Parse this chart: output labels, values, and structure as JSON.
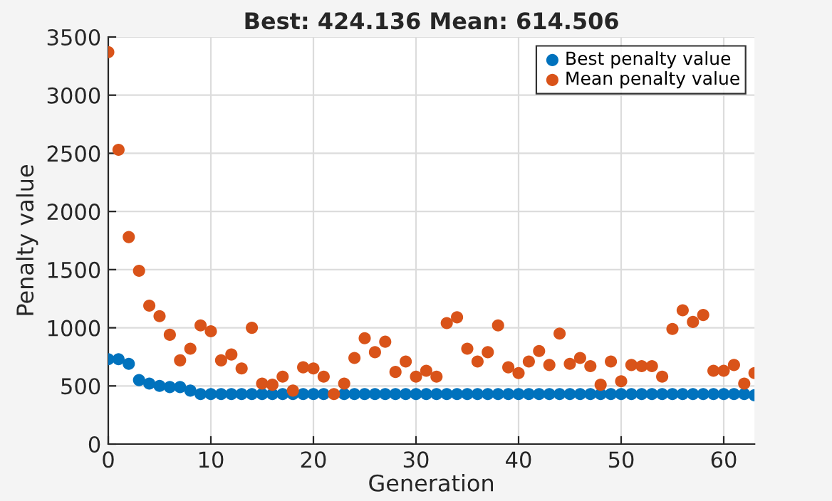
{
  "chart_data": {
    "type": "scatter",
    "title": "Best: 424.136 Mean: 614.506",
    "xlabel": "Generation",
    "ylabel": "Penalty value",
    "x": [
      0,
      1,
      2,
      3,
      4,
      5,
      6,
      7,
      8,
      9,
      10,
      11,
      12,
      13,
      14,
      15,
      16,
      17,
      18,
      19,
      20,
      21,
      22,
      23,
      24,
      25,
      26,
      27,
      28,
      29,
      30,
      31,
      32,
      33,
      34,
      35,
      36,
      37,
      38,
      39,
      40,
      41,
      42,
      43,
      44,
      45,
      46,
      47,
      48,
      49,
      50,
      51,
      52,
      53,
      54,
      55,
      56,
      57,
      58,
      59,
      60,
      61,
      62,
      63
    ],
    "series": [
      {
        "name": "Best penalty value",
        "color": "#0072bd",
        "values": [
          730,
          730,
          690,
          550,
          520,
          500,
          490,
          490,
          460,
          430,
          430,
          430,
          430,
          430,
          430,
          430,
          430,
          430,
          430,
          430,
          430,
          430,
          null,
          430,
          430,
          430,
          430,
          430,
          430,
          430,
          430,
          430,
          430,
          430,
          430,
          430,
          430,
          430,
          430,
          430,
          430,
          430,
          430,
          430,
          430,
          430,
          430,
          430,
          430,
          430,
          430,
          430,
          430,
          430,
          430,
          430,
          430,
          430,
          430,
          430,
          430,
          430,
          430,
          420
        ]
      },
      {
        "name": "Mean penalty value",
        "color": "#d95319",
        "values": [
          3370,
          2530,
          1780,
          1490,
          1190,
          1100,
          940,
          720,
          820,
          1020,
          970,
          720,
          770,
          650,
          1000,
          520,
          510,
          580,
          460,
          660,
          650,
          580,
          430,
          520,
          740,
          910,
          790,
          880,
          620,
          710,
          580,
          630,
          580,
          1040,
          1090,
          820,
          710,
          790,
          1020,
          660,
          610,
          710,
          800,
          680,
          950,
          690,
          740,
          670,
          510,
          710,
          540,
          680,
          670,
          670,
          580,
          990,
          1150,
          1050,
          1110,
          630,
          630,
          680,
          520,
          610
        ]
      }
    ],
    "xlim": [
      0,
      63
    ],
    "xticks": [
      0,
      10,
      20,
      30,
      40,
      50,
      60
    ],
    "ylim": [
      0,
      3500
    ],
    "yticks": [
      0,
      500,
      1000,
      1500,
      2000,
      2500,
      3000,
      3500
    ],
    "grid": true,
    "legend": "top right",
    "marker": "circle"
  }
}
